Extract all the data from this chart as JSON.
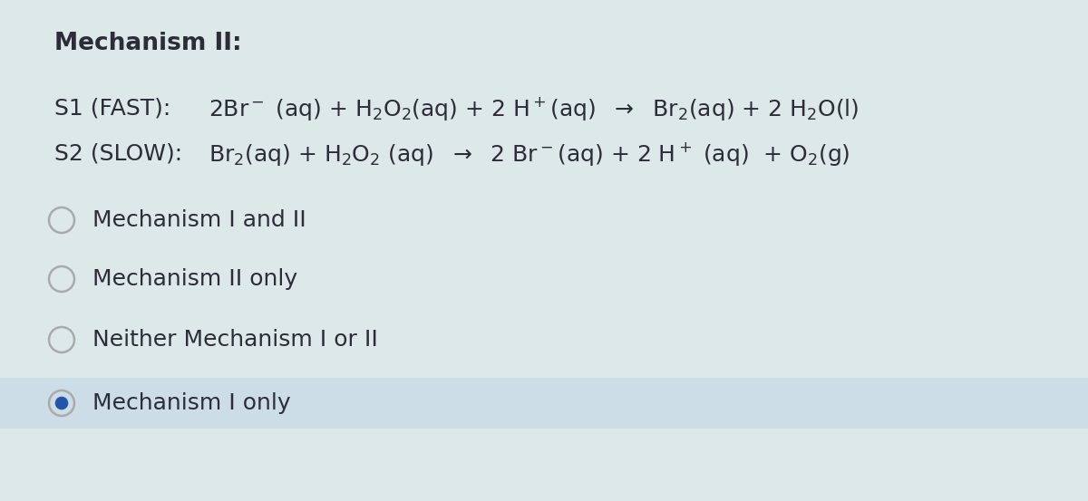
{
  "background_color": "#dde8e8",
  "text_color": "#2d2d3a",
  "title": "Mechanism II:",
  "title_fontsize": 19,
  "title_fontweight": "bold",
  "s1_label": "S1 (FAST):",
  "s2_label": "S2 (SLOW):",
  "fontsize_label": 18,
  "fontsize_eq": 18,
  "options": [
    {
      "text": "Mechanism I and II",
      "selected": false
    },
    {
      "text": "Mechanism II only",
      "selected": false
    },
    {
      "text": "Neither Mechanism I or II",
      "selected": false
    },
    {
      "text": "Mechanism I only",
      "selected": true
    }
  ],
  "option_fontsize": 18,
  "selected_highlight_color": "#cddde8",
  "radio_color": "#aaaaaa",
  "selected_dot_color": "#2255aa"
}
